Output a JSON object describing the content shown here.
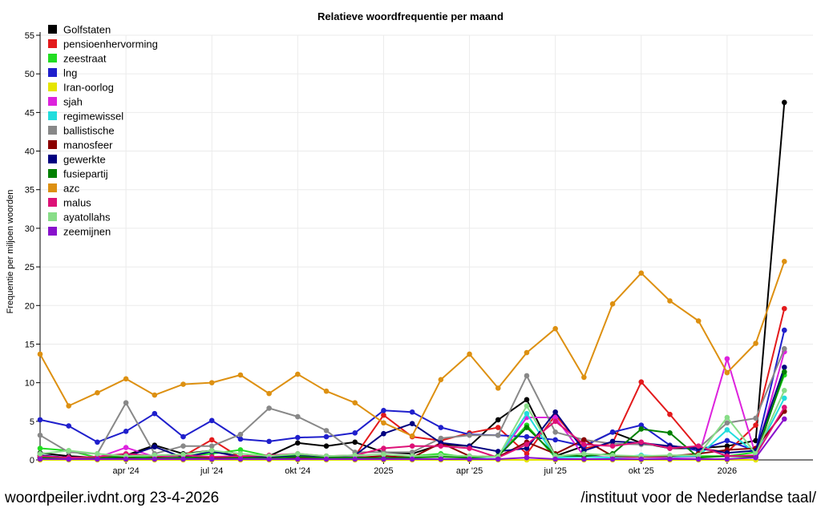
{
  "footer": {
    "left": "woordpeiler.ivdnt.org 23-4-2026",
    "right": "/instituut voor de Nederlandse taal/"
  },
  "chart_data": {
    "type": "line",
    "title": "Relatieve woordfrequentie per maand",
    "ylabel": "Frequentie per miljoen woorden",
    "xlabel": "",
    "ylim": [
      0,
      55
    ],
    "yticks": [
      0,
      5,
      10,
      15,
      20,
      25,
      30,
      35,
      40,
      45,
      50,
      55
    ],
    "grid": true,
    "legend_position": "top-left",
    "x": [
      "2024-01",
      "2024-02",
      "2024-03",
      "2024-04",
      "2024-05",
      "2024-06",
      "2024-07",
      "2024-08",
      "2024-09",
      "2024-10",
      "2024-11",
      "2024-12",
      "2025-01",
      "2025-02",
      "2025-03",
      "2025-04",
      "2025-05",
      "2025-06",
      "2025-07",
      "2025-08",
      "2025-09",
      "2025-10",
      "2025-11",
      "2025-12",
      "2026-01",
      "2026-02",
      "2026-03",
      "2026-04"
    ],
    "xticks": [
      {
        "label": "apr '24",
        "index": 3
      },
      {
        "label": "jul '24",
        "index": 6
      },
      {
        "label": "okt '24",
        "index": 9
      },
      {
        "label": "2025",
        "index": 12
      },
      {
        "label": "apr '25",
        "index": 15
      },
      {
        "label": "jul '25",
        "index": 18
      },
      {
        "label": "okt '25",
        "index": 21
      },
      {
        "label": "2026",
        "index": 24
      }
    ],
    "series": [
      {
        "name": "Golfstaten",
        "color": "#000000",
        "values": [
          0.9,
          0.5,
          0.3,
          0.6,
          1.9,
          0.8,
          1.2,
          0.4,
          0.5,
          2.2,
          1.8,
          2.3,
          1.0,
          0.8,
          2.0,
          1.8,
          5.2,
          7.8,
          0.5,
          1.8,
          3.6,
          2.2,
          1.5,
          1.5,
          1.8,
          2.5,
          46.3,
          null
        ]
      },
      {
        "name": "pensioenhervorming",
        "color": "#e31a1c",
        "values": [
          0.5,
          0.3,
          0.3,
          0.5,
          0.3,
          0.5,
          2.6,
          0.3,
          0.3,
          0.5,
          0.3,
          0.5,
          5.8,
          3.0,
          2.5,
          3.5,
          4.2,
          0.8,
          5.8,
          1.5,
          2.2,
          10.1,
          5.9,
          1.5,
          1.0,
          4.5,
          19.6,
          null
        ]
      },
      {
        "name": "zeestraat",
        "color": "#22dd22",
        "values": [
          1.5,
          1.2,
          0.3,
          0.5,
          0.4,
          0.5,
          0.8,
          1.3,
          0.5,
          0.6,
          0.5,
          0.4,
          0.3,
          0.5,
          0.8,
          0.3,
          0.5,
          4.5,
          0.3,
          0.5,
          0.3,
          0.5,
          0.3,
          0.5,
          0.5,
          1.0,
          11.0,
          null
        ]
      },
      {
        "name": "lng",
        "color": "#1f1fcc",
        "values": [
          5.2,
          4.4,
          2.3,
          3.7,
          6.0,
          3.0,
          5.1,
          2.7,
          2.4,
          2.9,
          3.0,
          3.5,
          6.4,
          6.2,
          4.2,
          3.3,
          3.2,
          3.0,
          2.6,
          1.8,
          3.6,
          4.5,
          1.9,
          1.2,
          2.5,
          1.2,
          16.8,
          null
        ]
      },
      {
        "name": "Iran-oorlog",
        "color": "#e5e500",
        "values": [
          0,
          0,
          0,
          0,
          0,
          0,
          0,
          0,
          0,
          0,
          0,
          0,
          0,
          0,
          0,
          0,
          0,
          0,
          0,
          0,
          0,
          0,
          0,
          0,
          0,
          0,
          null,
          null
        ]
      },
      {
        "name": "sjah",
        "color": "#dd22dd",
        "values": [
          0.2,
          0.1,
          0.3,
          1.6,
          0.4,
          0.3,
          0.3,
          0.2,
          0.3,
          0.4,
          0.3,
          0.4,
          0.3,
          0.3,
          0.5,
          0.3,
          0.4,
          5.5,
          5.5,
          0.5,
          0.3,
          0.4,
          0.3,
          0.4,
          13.1,
          0.6,
          14.0,
          null
        ]
      },
      {
        "name": "regimewissel",
        "color": "#22dddd",
        "values": [
          0.2,
          0.1,
          0.2,
          0.3,
          0.2,
          0.2,
          0.3,
          0.2,
          0.2,
          0.3,
          0.2,
          0.3,
          0.4,
          0.3,
          0.5,
          0.3,
          0.4,
          6.0,
          0.3,
          0.4,
          0.3,
          0.6,
          0.4,
          0.5,
          3.9,
          0.8,
          8.0,
          null
        ]
      },
      {
        "name": "ballistische",
        "color": "#888888",
        "values": [
          3.2,
          1.0,
          0.8,
          7.4,
          0.8,
          1.8,
          1.8,
          3.3,
          6.7,
          5.6,
          3.8,
          1.0,
          1.0,
          1.0,
          2.8,
          3.2,
          3.2,
          10.9,
          3.6,
          2.6,
          2.1,
          2.0,
          1.8,
          1.5,
          4.8,
          5.4,
          14.4,
          null
        ]
      },
      {
        "name": "manosfeer",
        "color": "#8b0000",
        "values": [
          0.3,
          0.2,
          0.3,
          0.2,
          0.3,
          0.2,
          0.3,
          0.3,
          0.2,
          0.3,
          0.2,
          0.3,
          0.5,
          0.3,
          2.2,
          0.5,
          0.4,
          2.3,
          0.8,
          2.6,
          0.5,
          0.4,
          0.5,
          0.8,
          1.3,
          1.5,
          6.3,
          null
        ]
      },
      {
        "name": "gewerkte",
        "color": "#000080",
        "values": [
          0.6,
          0.3,
          0.2,
          0.4,
          1.7,
          0.3,
          1.1,
          0.4,
          0.3,
          0.5,
          0.4,
          0.6,
          3.4,
          4.7,
          2.2,
          1.8,
          1.1,
          1.5,
          6.2,
          1.2,
          2.4,
          2.2,
          1.8,
          1.5,
          0.9,
          1.2,
          12.0,
          null
        ]
      },
      {
        "name": "fusiepartij",
        "color": "#008000",
        "values": [
          0.3,
          0.2,
          0.3,
          0.4,
          0.2,
          0.3,
          0.4,
          0.3,
          0.2,
          0.4,
          0.3,
          0.3,
          0.2,
          0.3,
          0.4,
          0.3,
          0.5,
          4.2,
          0.6,
          0.5,
          0.8,
          4.0,
          3.5,
          0.3,
          0.5,
          0.4,
          11.4,
          null
        ]
      },
      {
        "name": "azc",
        "color": "#dd9011",
        "values": [
          13.7,
          7.0,
          8.7,
          10.5,
          8.4,
          9.8,
          10.0,
          11.0,
          8.6,
          11.1,
          8.9,
          7.4,
          4.8,
          3.1,
          10.4,
          13.7,
          9.3,
          13.9,
          17.0,
          10.7,
          20.2,
          24.2,
          20.6,
          18.0,
          11.3,
          15.1,
          25.7,
          null
        ]
      },
      {
        "name": "malus",
        "color": "#dd1177",
        "values": [
          0.5,
          0.3,
          0.4,
          0.8,
          0.5,
          0.6,
          0.4,
          0.5,
          0.6,
          0.8,
          0.5,
          0.6,
          1.5,
          1.8,
          1.8,
          1.5,
          0.3,
          2.0,
          5.0,
          2.0,
          1.8,
          2.3,
          1.5,
          1.8,
          0.5,
          0.6,
          6.8,
          null
        ]
      },
      {
        "name": "ayatollahs",
        "color": "#88dd88",
        "values": [
          0.8,
          1.2,
          0.8,
          0.5,
          0.6,
          0.7,
          1.2,
          0.8,
          0.5,
          0.8,
          0.5,
          0.6,
          0.7,
          0.5,
          0.6,
          0.5,
          0.4,
          7.0,
          0.5,
          0.8,
          0.6,
          0.5,
          0.6,
          0.6,
          5.5,
          0.8,
          9.0,
          null
        ]
      },
      {
        "name": "zeemijnen",
        "color": "#8811cc",
        "values": [
          0.1,
          0.1,
          0.1,
          0.1,
          0.1,
          0.1,
          0.1,
          0.1,
          0.1,
          0.1,
          0.1,
          0.1,
          0.1,
          0.1,
          0.1,
          0.1,
          0.1,
          0.3,
          0.1,
          0.1,
          0.1,
          0.1,
          0.1,
          0.1,
          0.1,
          0.3,
          5.3,
          null
        ]
      }
    ]
  }
}
